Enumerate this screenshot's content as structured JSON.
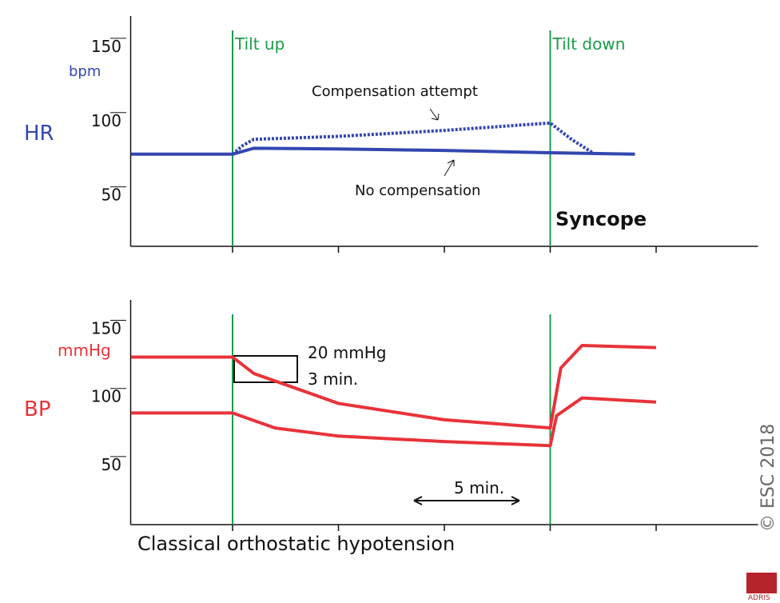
{
  "chart_data": [
    {
      "type": "line",
      "panel_label": "HR",
      "unit": "bpm",
      "xlim": [
        -5,
        25
      ],
      "xticks": [
        0,
        5,
        10,
        15,
        20
      ],
      "ylim": [
        10,
        165
      ],
      "yticks": [
        50,
        100,
        150
      ],
      "events": [
        {
          "x": 0,
          "label": "Tilt up"
        },
        {
          "x": 15,
          "label": "Tilt down"
        }
      ],
      "event_color": "#1a9c4a",
      "series": [
        {
          "name": "No compensation",
          "color": "#3347b0",
          "style": "solid",
          "x": [
            -4.8,
            0,
            1,
            5,
            10,
            15,
            19
          ],
          "values": [
            72,
            72,
            76,
            75.5,
            74.5,
            73,
            72
          ]
        },
        {
          "name": "Compensation attempt",
          "color": "#3347b0",
          "style": "dotted",
          "x": [
            0,
            0.5,
            1,
            5,
            10,
            15,
            16,
            17
          ],
          "values": [
            72,
            78,
            82,
            84,
            88,
            93,
            82,
            73
          ]
        }
      ],
      "annotation": "Syncope"
    },
    {
      "type": "line",
      "panel_label": "BP",
      "unit": "mmHg",
      "xlim": [
        -5,
        25
      ],
      "xticks": [
        0,
        5,
        10,
        15,
        20
      ],
      "ylim": [
        0,
        165
      ],
      "yticks": [
        50,
        100,
        150
      ],
      "events": [
        {
          "x": 0
        },
        {
          "x": 15
        }
      ],
      "event_color": "#1a9c4a",
      "series": [
        {
          "color": "#e8333a",
          "style": "solid",
          "x": [
            -4.8,
            0,
            1,
            3,
            5,
            10,
            15,
            15.5,
            16.5,
            20
          ],
          "values": [
            123,
            123,
            111,
            100,
            89,
            77,
            71,
            115,
            131.5,
            130
          ]
        },
        {
          "color": "#e8333a",
          "style": "solid",
          "x": [
            -4.8,
            0,
            2,
            5,
            10,
            15,
            15.3,
            16.5,
            20
          ],
          "values": [
            82,
            82,
            71,
            65,
            61,
            58,
            80,
            93,
            90
          ]
        }
      ],
      "annotations": [
        "20 mmHg",
        "3 min.",
        "5 min."
      ],
      "caption": "Classical orthostatic hypotension"
    }
  ],
  "copyright": "© ESC 2018",
  "logo": "ADRIS"
}
